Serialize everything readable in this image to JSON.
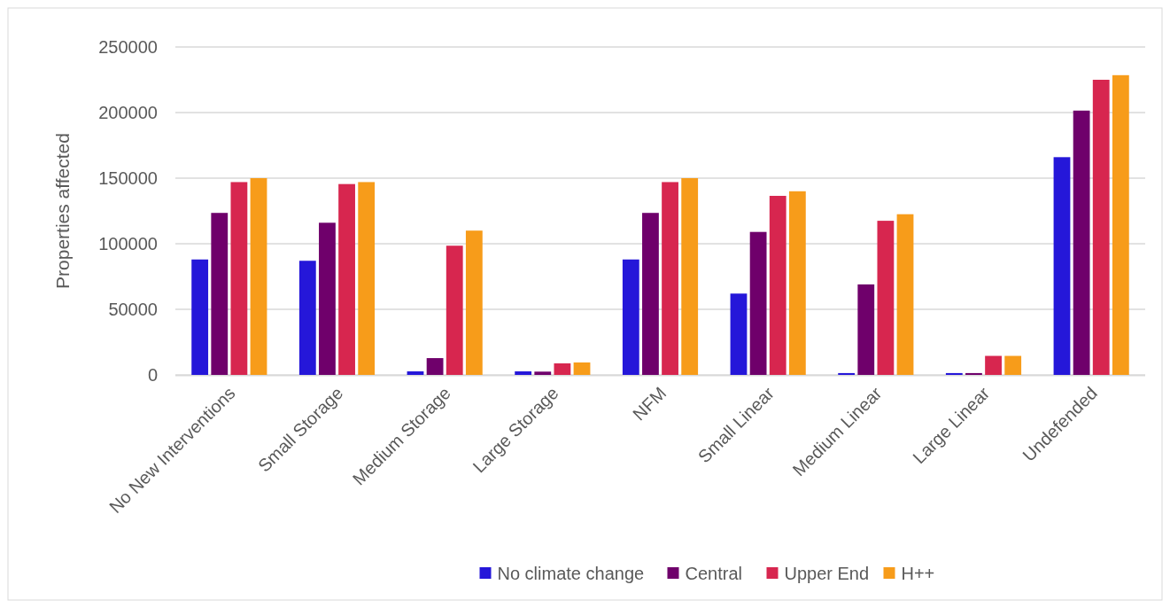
{
  "chart_data": {
    "type": "bar",
    "ylabel": "Properties affected",
    "categories": [
      "No New Interventions",
      "Small Storage",
      "Medium Storage",
      "Large Storage",
      "NFM",
      "Small Linear",
      "Medium Linear",
      "Large Linear",
      "Undefended"
    ],
    "series": [
      {
        "name": "No climate change",
        "color": "#2517d9",
        "values": [
          88000,
          87000,
          2700,
          2700,
          88000,
          62000,
          1400,
          1400,
          166000
        ]
      },
      {
        "name": "Central",
        "color": "#6f006b",
        "values": [
          123500,
          116000,
          12800,
          2500,
          123500,
          109000,
          69000,
          1400,
          201500
        ]
      },
      {
        "name": "Upper End",
        "color": "#d7264f",
        "values": [
          147000,
          145500,
          98500,
          8800,
          147000,
          136500,
          117500,
          14500,
          225000
        ]
      },
      {
        "name": "H++",
        "color": "#f79c1a",
        "values": [
          150000,
          147000,
          110000,
          9500,
          150000,
          140000,
          122500,
          14500,
          228500
        ]
      }
    ],
    "ylim": [
      0,
      250000
    ],
    "yticks": [
      0,
      50000,
      100000,
      150000,
      200000,
      250000
    ],
    "grid": "y",
    "legend": "bottom"
  }
}
